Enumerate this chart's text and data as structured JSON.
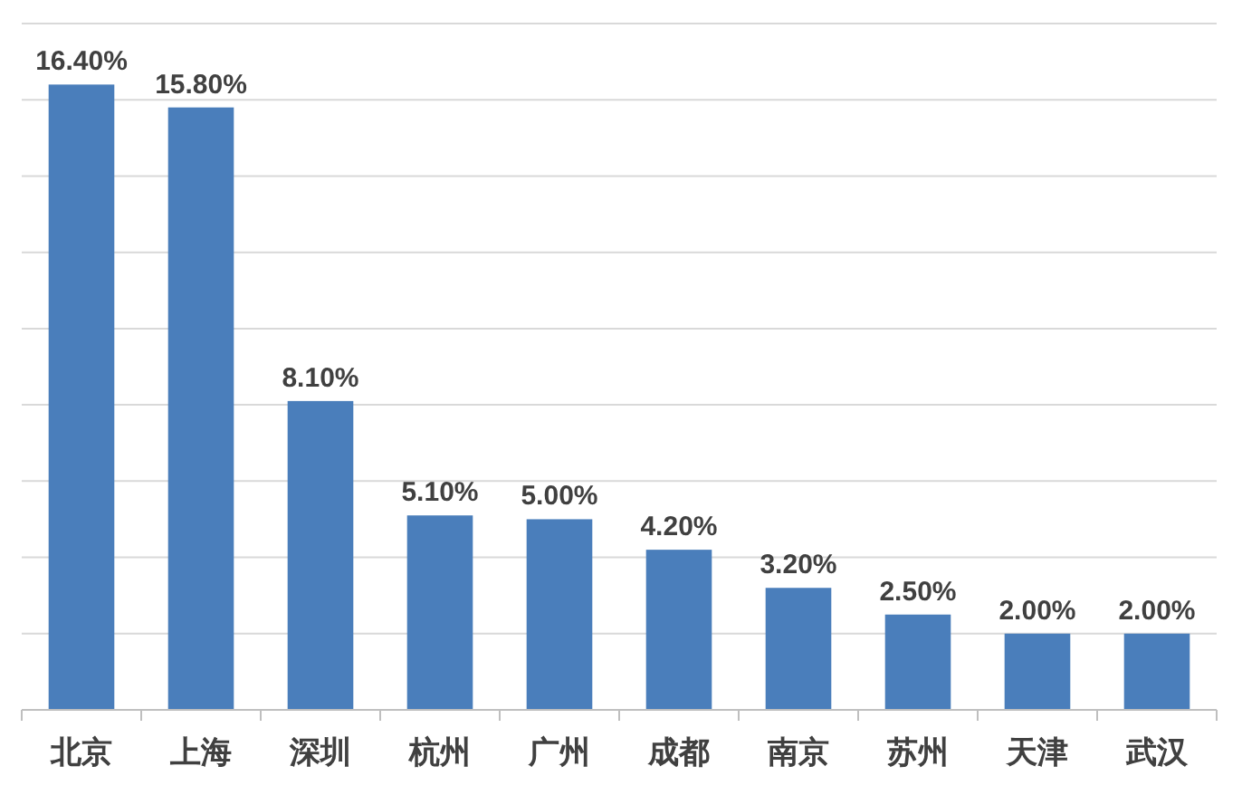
{
  "chart_data": {
    "type": "bar",
    "categories": [
      "北京",
      "上海",
      "深圳",
      "杭州",
      "广州",
      "成都",
      "南京",
      "苏州",
      "天津",
      "武汉"
    ],
    "values": [
      16.4,
      15.8,
      8.1,
      5.1,
      5.0,
      4.2,
      3.2,
      2.5,
      2.0,
      2.0
    ],
    "color": "#4a7ebb",
    "value_labels": [
      "16.40%",
      "15.80%",
      "8.10%",
      "5.10%",
      "5.00%",
      "4.20%",
      "3.20%",
      "2.50%",
      "2.00%",
      "2.00%"
    ],
    "ylim": [
      0,
      18
    ],
    "yticks": [
      {
        "value": 0,
        "label": null
      },
      {
        "value": 2,
        "label": null
      },
      {
        "value": 4,
        "label": null
      },
      {
        "value": 6,
        "label": null
      },
      {
        "value": 8,
        "label": null
      },
      {
        "value": 10,
        "label": null
      },
      {
        "value": 12,
        "label": null
      },
      {
        "value": 14,
        "label": null
      },
      {
        "value": 16,
        "label": null
      },
      {
        "value": 18,
        "label": null
      }
    ],
    "grid": "y",
    "tick_labels": "x"
  }
}
